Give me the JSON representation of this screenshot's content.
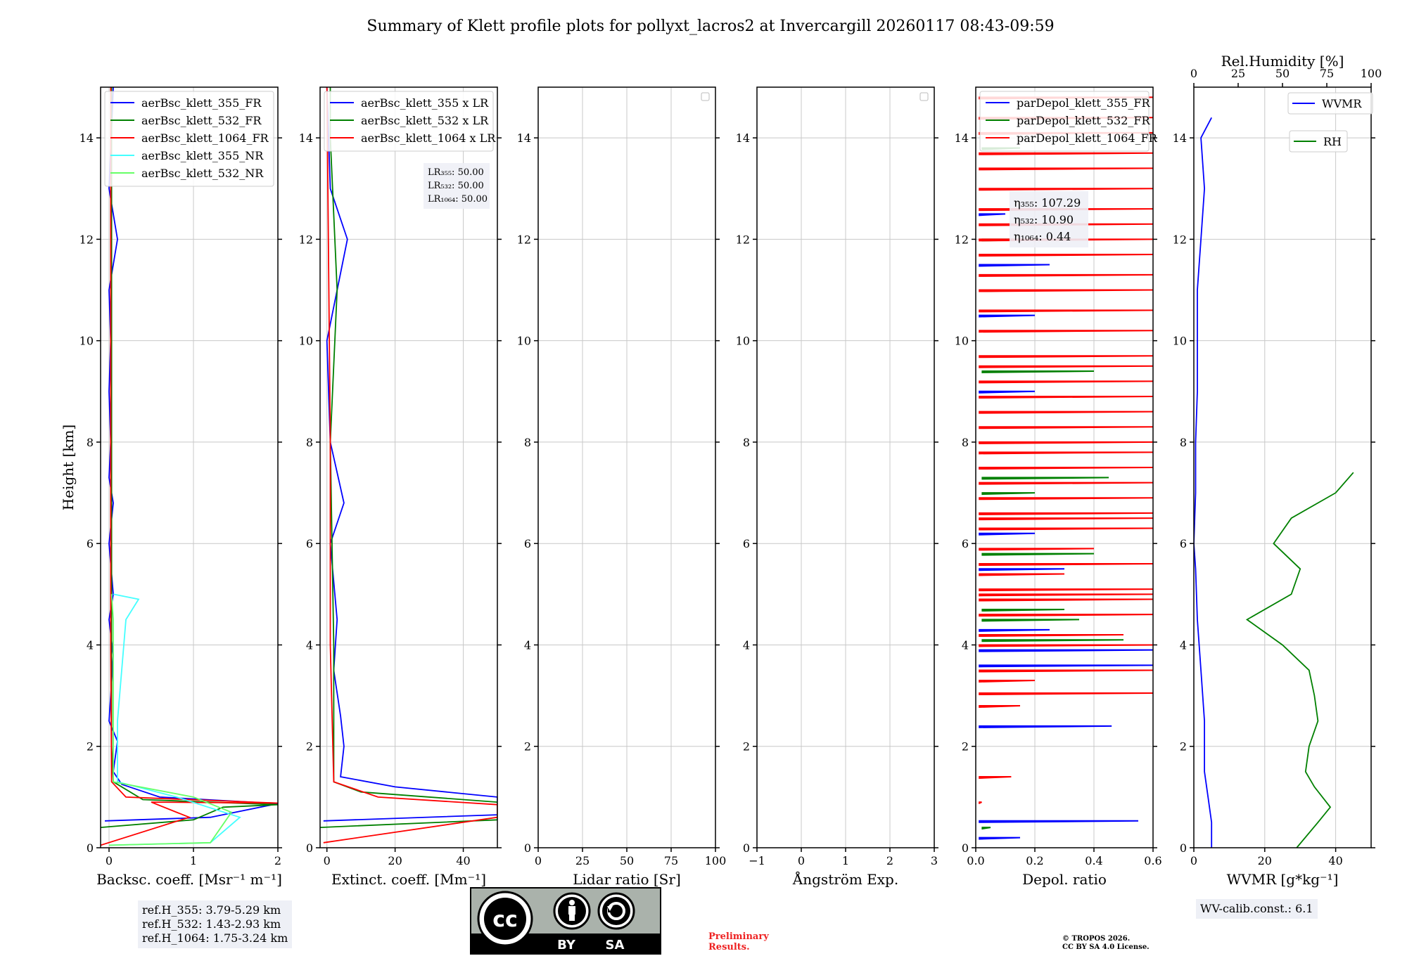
{
  "title": "Summary of Klett profile plots for pollyxt_lacros2 at Invercargill 20260117 08:43-09:59",
  "colors": {
    "c355": "#0000ff",
    "c532": "#008000",
    "c1064": "#ff0000",
    "c355nr": "#44ffff",
    "c532nr": "#66ff66",
    "grid": "#c8c8c8"
  },
  "chart_data": [
    {
      "type": "line",
      "name": "backscatter",
      "xlabel": "Backsc. coeff. [Msr⁻¹ m⁻¹]",
      "ylabel": "Height [km]",
      "xlim": [
        -0.1,
        2.0
      ],
      "ylim": [
        0,
        15
      ],
      "xticks": [
        0,
        1,
        2
      ],
      "xticklabels": [
        "0",
        "1",
        "2"
      ],
      "yticks": [
        0,
        2,
        4,
        6,
        8,
        10,
        12,
        14
      ],
      "legend": [
        "aerBsc_klett_355_FR",
        "aerBsc_klett_532_FR",
        "aerBsc_klett_1064_FR",
        "aerBsc_klett_355_NR",
        "aerBsc_klett_532_NR"
      ],
      "series": [
        {
          "name": "aerBsc_klett_355_FR",
          "color": "#0000ff",
          "points": [
            [
              -0.05,
              0.53
            ],
            [
              1.2,
              0.6
            ],
            [
              2.0,
              0.87
            ],
            [
              0.6,
              1.0
            ],
            [
              0.15,
              1.25
            ],
            [
              0.05,
              1.5
            ],
            [
              0.1,
              2.1
            ],
            [
              0.0,
              2.5
            ],
            [
              0.02,
              3.0
            ],
            [
              0.05,
              3.8
            ],
            [
              0.0,
              4.5
            ],
            [
              0.05,
              5.0
            ],
            [
              0.0,
              6.0
            ],
            [
              0.05,
              6.8
            ],
            [
              0.0,
              7.3
            ],
            [
              0.02,
              8.0
            ],
            [
              0.0,
              9.0
            ],
            [
              0.02,
              10.0
            ],
            [
              0.0,
              11.0
            ],
            [
              0.1,
              12.0
            ],
            [
              0.0,
              13.0
            ],
            [
              0.05,
              15.0
            ]
          ]
        },
        {
          "name": "aerBsc_klett_532_FR",
          "color": "#008000",
          "points": [
            [
              -0.1,
              0.4
            ],
            [
              1.0,
              0.55
            ],
            [
              1.35,
              0.8
            ],
            [
              2.0,
              0.85
            ],
            [
              0.4,
              0.95
            ],
            [
              0.05,
              1.3
            ],
            [
              0.03,
              2.0
            ],
            [
              0.03,
              4.0
            ],
            [
              0.03,
              8.0
            ],
            [
              0.03,
              12.0
            ],
            [
              0.03,
              15.0
            ]
          ]
        },
        {
          "name": "aerBsc_klett_1064_FR",
          "color": "#ff0000",
          "points": [
            [
              -0.1,
              0.05
            ],
            [
              0.95,
              0.6
            ],
            [
              0.5,
              0.9
            ],
            [
              2.0,
              0.88
            ],
            [
              0.2,
              1.0
            ],
            [
              0.03,
              1.3
            ],
            [
              0.02,
              4.0
            ],
            [
              0.02,
              8.0
            ],
            [
              0.02,
              15.0
            ]
          ]
        },
        {
          "name": "aerBsc_klett_355_NR",
          "color": "#44ffff",
          "points": [
            [
              0.0,
              0.05
            ],
            [
              1.2,
              0.1
            ],
            [
              1.55,
              0.6
            ],
            [
              0.8,
              1.0
            ],
            [
              0.1,
              1.3
            ],
            [
              0.1,
              2.5
            ],
            [
              0.15,
              3.5
            ],
            [
              0.2,
              4.5
            ],
            [
              0.35,
              4.9
            ],
            [
              0.05,
              5.0
            ]
          ]
        },
        {
          "name": "aerBsc_klett_532_NR",
          "color": "#66ff66",
          "points": [
            [
              0.0,
              0.05
            ],
            [
              1.2,
              0.1
            ],
            [
              1.45,
              0.7
            ],
            [
              1.0,
              1.0
            ],
            [
              0.05,
              1.3
            ],
            [
              0.05,
              2.5
            ],
            [
              0.05,
              4.5
            ],
            [
              0.03,
              5.0
            ]
          ]
        }
      ],
      "annotation": {
        "lines": [
          "ref.H_355: 3.79-5.29 km",
          "ref.H_532: 1.43-2.93 km",
          "ref.H_1064: 1.75-3.24 km"
        ]
      }
    },
    {
      "type": "line",
      "name": "extinction",
      "xlabel": "Extinct. coeff. [Mm⁻¹]",
      "xlim": [
        -2,
        50
      ],
      "ylim": [
        0,
        15
      ],
      "xticks": [
        0,
        20,
        40
      ],
      "xticklabels": [
        "0",
        "20",
        "40"
      ],
      "yticks": [
        0,
        2,
        4,
        6,
        8,
        10,
        12,
        14
      ],
      "legend": [
        "aerBsc_klett_355 x LR",
        "aerBsc_klett_532 x LR",
        "aerBsc_klett_1064 x LR"
      ],
      "series": [
        {
          "name": "aerBsc_klett_355 x LR",
          "color": "#0000ff",
          "points": [
            [
              -1,
              0.53
            ],
            [
              50,
              0.65
            ],
            [
              50,
              1.0
            ],
            [
              20,
              1.2
            ],
            [
              4,
              1.4
            ],
            [
              5,
              2.0
            ],
            [
              4,
              2.6
            ],
            [
              2,
              3.5
            ],
            [
              3,
              4.5
            ],
            [
              1,
              6.0
            ],
            [
              5,
              6.8
            ],
            [
              1,
              8.0
            ],
            [
              0,
              10.0
            ],
            [
              6,
              12.0
            ],
            [
              1,
              13.0
            ],
            [
              0,
              15.0
            ]
          ]
        },
        {
          "name": "aerBsc_klett_532 x LR",
          "color": "#008000",
          "points": [
            [
              -2,
              0.4
            ],
            [
              50,
              0.55
            ],
            [
              50,
              0.9
            ],
            [
              10,
              1.1
            ],
            [
              2,
              1.3
            ],
            [
              2,
              4.0
            ],
            [
              1,
              8.0
            ],
            [
              3,
              11.0
            ],
            [
              1,
              14.0
            ],
            [
              1,
              15.0
            ]
          ]
        },
        {
          "name": "aerBsc_klett_1064 x LR",
          "color": "#ff0000",
          "points": [
            [
              -1,
              0.1
            ],
            [
              50,
              0.6
            ],
            [
              50,
              0.85
            ],
            [
              15,
              1.0
            ],
            [
              2,
              1.3
            ],
            [
              1,
              4.0
            ],
            [
              1,
              8.0
            ],
            [
              0,
              15.0
            ]
          ]
        }
      ],
      "annotation": {
        "lines": [
          "LR₃₅₅: 50.00",
          "LR₅₃₂: 50.00",
          "LR₁₀₆₄: 50.00"
        ]
      }
    },
    {
      "type": "line",
      "name": "lidar ratio",
      "xlabel": "Lidar ratio [Sr]",
      "xlim": [
        0,
        100
      ],
      "ylim": [
        0,
        15
      ],
      "xticks": [
        0,
        25,
        50,
        75,
        100
      ],
      "xticklabels": [
        "0",
        "25",
        "50",
        "75",
        "100"
      ],
      "yticks": [
        0,
        2,
        4,
        6,
        8,
        10,
        12,
        14
      ],
      "series": []
    },
    {
      "type": "line",
      "name": "angstrom",
      "xlabel": "Ångström Exp.",
      "xlim": [
        -1,
        3
      ],
      "ylim": [
        0,
        15
      ],
      "xticks": [
        -1,
        0,
        1,
        2,
        3
      ],
      "xticklabels": [
        "−1",
        "0",
        "1",
        "2",
        "3"
      ],
      "yticks": [
        0,
        2,
        4,
        6,
        8,
        10,
        12,
        14
      ],
      "series": []
    },
    {
      "type": "line",
      "name": "depolarization",
      "xlabel": "Depol. ratio",
      "xlim": [
        0,
        0.6
      ],
      "ylim": [
        0,
        15
      ],
      "xticks": [
        0,
        0.2,
        0.4,
        0.6
      ],
      "xticklabels": [
        "0.0",
        "0.2",
        "0.4",
        "0.6"
      ],
      "yticks": [
        0,
        2,
        4,
        6,
        8,
        10,
        12,
        14
      ],
      "legend": [
        "parDepol_klett_355_FR",
        "parDepol_klett_532_FR",
        "parDepol_klett_1064_FR"
      ],
      "series": [
        {
          "name": "parDepol_klett_355_FR",
          "color": "#0000ff",
          "spikes": [
            [
              0.55,
              0.53
            ],
            [
              0.15,
              0.2
            ],
            [
              0.46,
              2.4
            ],
            [
              0.6,
              3.6
            ],
            [
              0.6,
              3.9
            ],
            [
              0.25,
              4.3
            ],
            [
              0.3,
              5.5
            ],
            [
              0.2,
              6.2
            ],
            [
              0.3,
              7.5
            ],
            [
              0.2,
              9.0
            ],
            [
              0.2,
              10.5
            ],
            [
              0.25,
              11.5
            ],
            [
              0.1,
              12.5
            ]
          ],
          "base": 0.01
        },
        {
          "name": "parDepol_klett_532_FR",
          "color": "#008000",
          "spikes": [
            [
              0.05,
              0.4
            ],
            [
              0.35,
              4.5
            ],
            [
              0.5,
              4.1
            ],
            [
              0.3,
              4.7
            ],
            [
              0.4,
              5.8
            ],
            [
              0.2,
              7.0
            ],
            [
              0.45,
              7.3
            ],
            [
              0.4,
              9.4
            ],
            [
              0.25,
              11.0
            ],
            [
              0.3,
              12.0
            ],
            [
              0.15,
              13.8
            ]
          ],
          "base": 0.02
        },
        {
          "name": "parDepol_klett_1064_FR",
          "color": "#ff0000",
          "spikes": [
            [
              0.02,
              0.9
            ],
            [
              0.12,
              1.4
            ],
            [
              0.15,
              2.8
            ],
            [
              0.6,
              3.05
            ],
            [
              0.2,
              3.3
            ],
            [
              0.6,
              3.5
            ],
            [
              0.6,
              4.0
            ],
            [
              0.5,
              4.2
            ],
            [
              0.6,
              4.6
            ],
            [
              0.6,
              4.9
            ],
            [
              0.6,
              5.0
            ],
            [
              0.6,
              5.1
            ],
            [
              0.3,
              5.4
            ],
            [
              0.6,
              5.6
            ],
            [
              0.4,
              5.9
            ],
            [
              0.6,
              6.3
            ],
            [
              0.6,
              6.5
            ],
            [
              0.6,
              6.6
            ],
            [
              0.6,
              6.9
            ],
            [
              0.6,
              7.2
            ],
            [
              0.6,
              7.5
            ],
            [
              0.6,
              7.8
            ],
            [
              0.6,
              8.0
            ],
            [
              0.6,
              8.3
            ],
            [
              0.6,
              8.6
            ],
            [
              0.6,
              8.9
            ],
            [
              0.6,
              9.2
            ],
            [
              0.6,
              9.5
            ],
            [
              0.6,
              9.7
            ],
            [
              0.6,
              10.2
            ],
            [
              0.6,
              10.6
            ],
            [
              0.6,
              11.0
            ],
            [
              0.6,
              11.3
            ],
            [
              0.6,
              11.7
            ],
            [
              0.6,
              12.0
            ],
            [
              0.6,
              12.3
            ],
            [
              0.6,
              12.6
            ],
            [
              0.6,
              13.0
            ],
            [
              0.6,
              13.4
            ],
            [
              0.6,
              13.7
            ],
            [
              0.6,
              14.1
            ],
            [
              0.6,
              14.4
            ],
            [
              0.6,
              14.8
            ]
          ],
          "base": 0.01
        }
      ],
      "annotation": {
        "lines": [
          "η₃₅₅: 107.29",
          "η₅₃₂: 10.90",
          "η₁₀₆₄: 0.44"
        ]
      }
    },
    {
      "type": "line",
      "name": "water vapor",
      "xlabel": "WVMR [g*kg⁻¹]",
      "x2label": "Rel.Humidity [%]",
      "xlim": [
        0,
        50
      ],
      "x2lim": [
        0,
        100
      ],
      "ylim": [
        0,
        15
      ],
      "xticks": [
        0,
        20,
        40
      ],
      "xticklabels": [
        "0",
        "20",
        "40"
      ],
      "x2ticks": [
        0,
        25,
        50,
        75,
        100
      ],
      "x2ticklabels": [
        "0",
        "25",
        "50",
        "75",
        "100"
      ],
      "yticks": [
        0,
        2,
        4,
        6,
        8,
        10,
        12,
        14
      ],
      "legend": [
        "WVMR",
        "RH"
      ],
      "series": [
        {
          "name": "WVMR",
          "color": "#0000ff",
          "points": [
            [
              5,
              0.0
            ],
            [
              5,
              0.5
            ],
            [
              4,
              1.0
            ],
            [
              3,
              1.5
            ],
            [
              3,
              2.5
            ],
            [
              2,
              3.5
            ],
            [
              1,
              4.5
            ],
            [
              0.5,
              5.5
            ],
            [
              0,
              6.0
            ],
            [
              0.5,
              7.0
            ],
            [
              0.5,
              8.0
            ],
            [
              1,
              9.0
            ],
            [
              1,
              10.0
            ],
            [
              1,
              11.0
            ],
            [
              2,
              12.0
            ],
            [
              3,
              13.0
            ],
            [
              2,
              14.0
            ],
            [
              5,
              14.4
            ]
          ]
        },
        {
          "name": "RH",
          "color": "#008000",
          "axis": "x2",
          "points": [
            [
              58,
              0.0
            ],
            [
              70,
              0.5
            ],
            [
              77,
              0.8
            ],
            [
              68,
              1.2
            ],
            [
              63,
              1.5
            ],
            [
              65,
              2.0
            ],
            [
              70,
              2.5
            ],
            [
              68,
              3.0
            ],
            [
              65,
              3.5
            ],
            [
              50,
              4.0
            ],
            [
              30,
              4.5
            ],
            [
              55,
              5.0
            ],
            [
              60,
              5.5
            ],
            [
              45,
              6.0
            ],
            [
              55,
              6.5
            ],
            [
              80,
              7.0
            ],
            [
              90,
              7.4
            ]
          ]
        }
      ],
      "annotation": {
        "lines": [
          "WV-calib.const.: 6.1"
        ]
      }
    }
  ],
  "license": {
    "cc": "cc",
    "by": "BY",
    "sa": "SA"
  },
  "preliminary": [
    "Preliminary",
    "Results."
  ],
  "copyright": [
    "© TROPOS 2026.",
    "CC BY SA 4.0 License."
  ]
}
